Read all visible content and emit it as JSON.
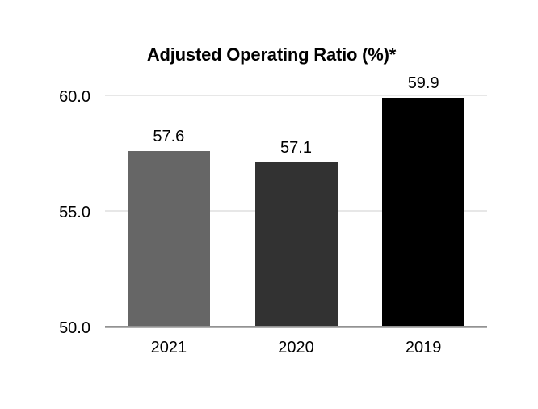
{
  "chart_data": {
    "type": "bar",
    "title": "Adjusted Operating Ratio (%)*",
    "categories": [
      "2021",
      "2020",
      "2019"
    ],
    "values": [
      57.6,
      57.1,
      59.9
    ],
    "value_labels": [
      "57.6",
      "57.1",
      "59.9"
    ],
    "bar_colors": [
      "#666666",
      "#323232",
      "#000000"
    ],
    "ylim": [
      50,
      61
    ],
    "yticks": [
      50,
      55,
      60
    ],
    "ytick_labels": [
      "50.0",
      "55.0",
      "60.0"
    ],
    "grid": "horizontal-light",
    "legend": "none",
    "xlabel": "",
    "ylabel": ""
  },
  "colors": {
    "background": "#ffffff",
    "gridline": "#e7e7e7",
    "axis_line": "#959595",
    "text": "#000000"
  }
}
